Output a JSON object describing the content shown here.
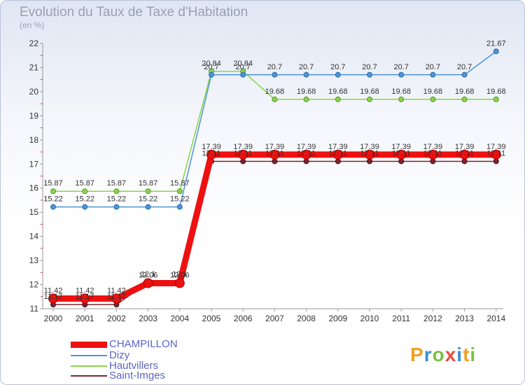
{
  "title": "Evolution du Taux de Taxe d'Habitation",
  "subtitle": "(en %)",
  "logo": "Proxiti",
  "chart_data": {
    "type": "line",
    "x": [
      2000,
      2001,
      2002,
      2003,
      2004,
      2005,
      2006,
      2007,
      2008,
      2009,
      2010,
      2011,
      2012,
      2013,
      2014
    ],
    "ylim": [
      11,
      22
    ],
    "yticks": [
      11,
      12,
      13,
      14,
      15,
      16,
      17,
      18,
      19,
      20,
      21,
      22
    ],
    "xlabel": "",
    "ylabel": "",
    "series": [
      {
        "name": "CHAMPILLON",
        "color": "#ee1111",
        "labelled": true,
        "values": [
          11.42,
          11.42,
          11.42,
          12.06,
          12.06,
          17.39,
          17.39,
          17.39,
          17.39,
          17.39,
          17.39,
          17.39,
          17.39,
          17.39,
          17.39
        ]
      },
      {
        "name": "Dizy",
        "color": "#4d94d6",
        "labelled": true,
        "values": [
          15.22,
          15.22,
          15.22,
          15.22,
          15.22,
          20.7,
          20.7,
          20.7,
          20.7,
          20.7,
          20.7,
          20.7,
          20.7,
          20.7,
          21.67
        ]
      },
      {
        "name": "Hautvillers",
        "color": "#88d44a",
        "labelled": true,
        "values": [
          15.87,
          15.87,
          15.87,
          15.87,
          15.87,
          20.84,
          20.84,
          19.68,
          19.68,
          19.68,
          19.68,
          19.68,
          19.68,
          19.68,
          19.68
        ]
      },
      {
        "name": "Saint-Imges",
        "color": "#7a2430",
        "labelled": true,
        "values": [
          11.17,
          11.17,
          11.17,
          12.1,
          12.1,
          17.11,
          17.11,
          17.11,
          17.11,
          17.11,
          17.11,
          17.11,
          17.11,
          17.11,
          17.11
        ]
      }
    ]
  }
}
